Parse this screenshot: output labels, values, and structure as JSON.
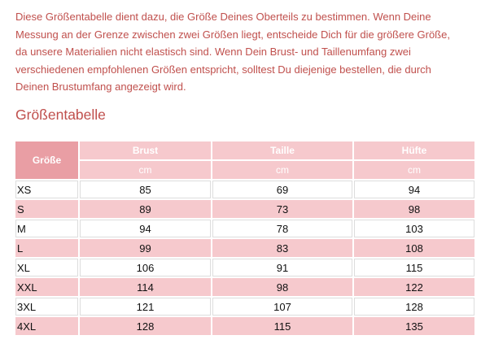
{
  "intro": {
    "lines": [
      "Diese Größentabelle dient dazu, die Größe Deines Oberteils zu bestimmen. Wenn Deine",
      "Messung an der Grenze zwischen zwei Größen liegt, entscheide Dich für die größere Größe,",
      "da unsere Materialien nicht elastisch sind. Wenn Dein Brust- und Taillenumfang zwei",
      "verschiedenen empfohlenen Größen entspricht, solltest Du diejenige bestellen, die durch",
      "Deinen Brustumfang angezeigt wird."
    ]
  },
  "heading": "Größentabelle",
  "table": {
    "header": [
      "Größe",
      "Brust",
      "Taille",
      "Hüfte"
    ],
    "units": [
      "cm",
      "cm",
      "cm"
    ],
    "rows": [
      [
        "XS",
        85,
        69,
        94
      ],
      [
        "S",
        89,
        73,
        98
      ],
      [
        "M",
        94,
        78,
        103
      ],
      [
        "L",
        99,
        83,
        108
      ],
      [
        "XL",
        106,
        91,
        115
      ],
      [
        "XXL",
        114,
        98,
        122
      ],
      [
        "3XL",
        121,
        107,
        128
      ],
      [
        "4XL",
        128,
        115,
        135
      ]
    ]
  }
}
